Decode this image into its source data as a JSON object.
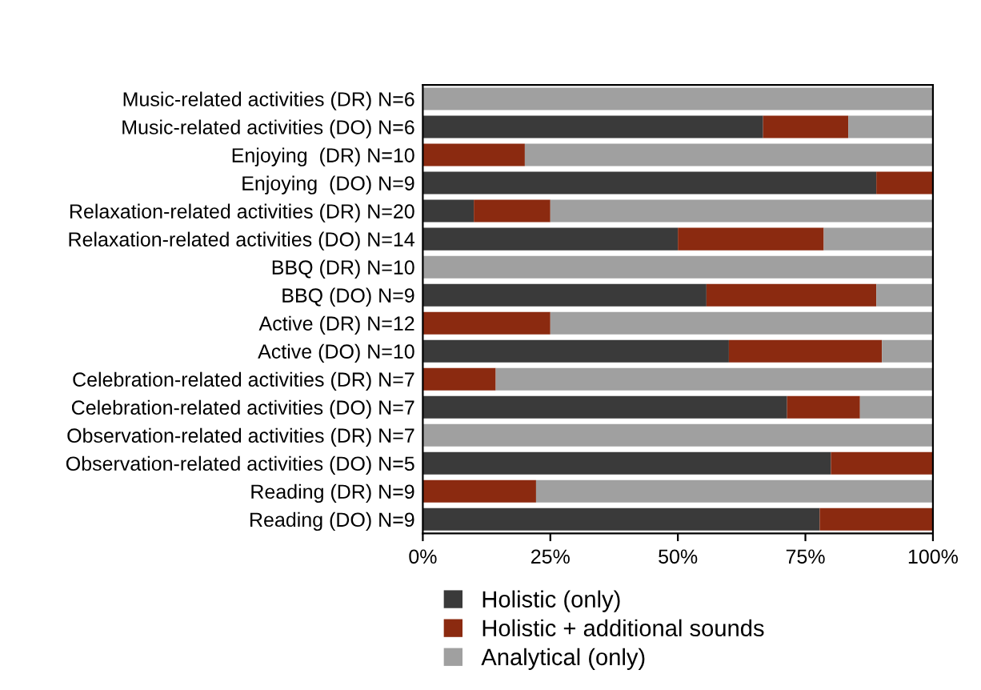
{
  "chart_data": {
    "type": "bar",
    "orientation": "horizontal",
    "stacked": true,
    "categories": [
      "Music-related activities (DR) N=6",
      "Music-related activities (DO) N=6",
      "Enjoying  (DR) N=10",
      "Enjoying  (DO) N=9",
      "Relaxation-related activities (DR) N=20",
      "Relaxation-related activities (DO) N=14",
      "BBQ (DR) N=10",
      "BBQ (DO) N=9",
      "Active (DR) N=12",
      "Active (DO) N=10",
      "Celebration-related activities (DR) N=7",
      "Celebration-related activities (DO) N=7",
      "Observation-related activities (DR) N=7",
      "Observation-related activities (DO) N=5",
      "Reading (DR) N=9",
      "Reading (DO) N=9"
    ],
    "series": [
      {
        "name": "Holistic (only)",
        "color": "#3a3a3a",
        "values": [
          0,
          66.7,
          0,
          88.9,
          10,
          50,
          0,
          55.6,
          0,
          60,
          0,
          71.4,
          0,
          80,
          0,
          77.8
        ]
      },
      {
        "name": "Holistic + additional sounds",
        "color": "#8b2a10",
        "values": [
          0,
          16.7,
          20,
          11.1,
          15,
          28.6,
          0,
          33.3,
          25,
          30,
          14.3,
          14.3,
          0,
          20,
          22.2,
          22.2
        ]
      },
      {
        "name": "Analytical (only)",
        "color": "#a0a0a0",
        "values": [
          100,
          16.7,
          80,
          0,
          75,
          21.4,
          100,
          11.1,
          75,
          10,
          85.7,
          14.3,
          100,
          0,
          77.8,
          0
        ]
      }
    ],
    "xlim": [
      0,
      100
    ],
    "xticks": [
      {
        "value": 0,
        "label": "0%"
      },
      {
        "value": 25,
        "label": "25%"
      },
      {
        "value": 50,
        "label": "50%"
      },
      {
        "value": 75,
        "label": "75%"
      },
      {
        "value": 100,
        "label": "100%"
      }
    ],
    "grid": false,
    "legend": "bottom"
  }
}
